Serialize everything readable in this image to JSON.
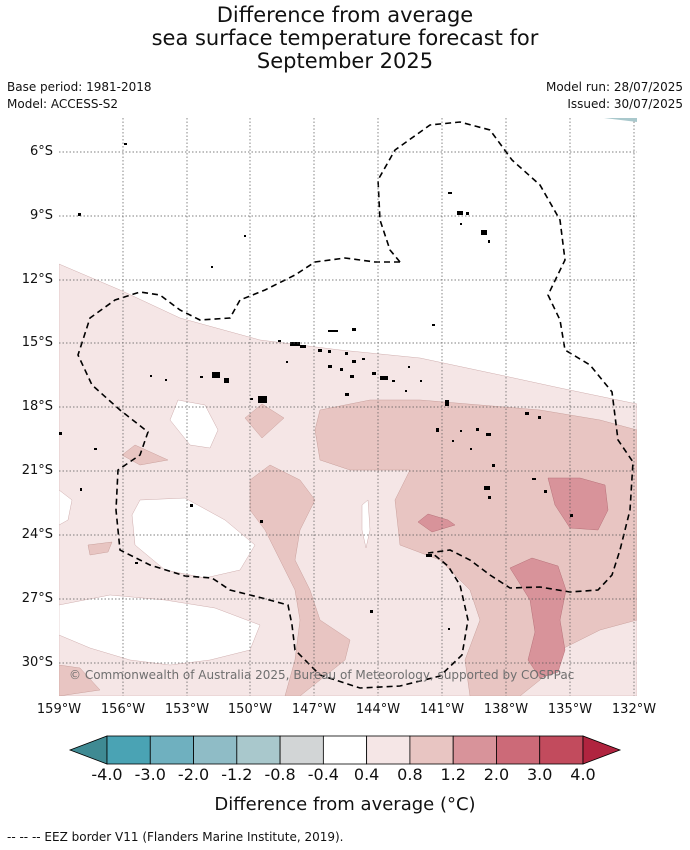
{
  "title_lines": [
    "Difference from average",
    "sea surface temperature forecast for",
    "September 2025"
  ],
  "meta_left": [
    "Base period: 1981-2018",
    "Model: ACCESS-S2"
  ],
  "meta_right": [
    "Model run: 28/07/2025",
    "Issued: 30/07/2025"
  ],
  "lat_labels": [
    "6°S",
    "9°S",
    "12°S",
    "15°S",
    "18°S",
    "21°S",
    "24°S",
    "27°S",
    "30°S"
  ],
  "lon_labels": [
    "159°W",
    "156°W",
    "153°W",
    "150°W",
    "147°W",
    "144°W",
    "141°W",
    "138°W",
    "135°W",
    "132°W"
  ],
  "copyright": "© Commonwealth of Australia 2025, Bureau of Meteorology, supported by COSPPac",
  "colorbar": {
    "ticks": [
      "-4.0",
      "-3.0",
      "-2.0",
      "-1.2",
      "-0.8",
      "-0.4",
      "0.4",
      "0.8",
      "1.2",
      "2.0",
      "3.0",
      "4.0"
    ],
    "colors": [
      "#3f8a93",
      "#4aa3b4",
      "#6fb0bf",
      "#8fbcc6",
      "#a9c8cc",
      "#d2d5d6",
      "#ffffff",
      "#f5e6e6",
      "#e8c5c2",
      "#d8939a",
      "#cc6a78",
      "#c24b5d",
      "#b0243f"
    ],
    "label": "Difference from average (°C)"
  },
  "footer": "-- -- -- EEZ border V11 (Flanders Marine Institute, 2019).",
  "legend_fill_colors": {
    "light": "#f5e6e6",
    "medium": "#e8c5c2",
    "strong": "#d8939a",
    "neutral": "#ffffff"
  }
}
